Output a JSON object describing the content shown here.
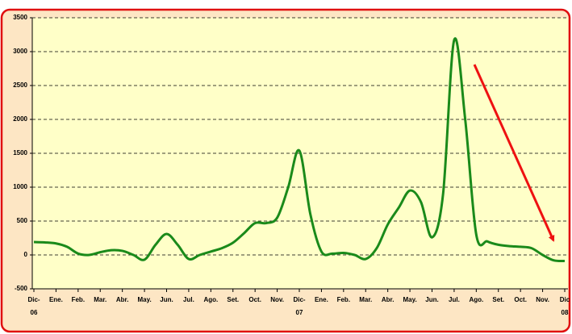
{
  "chart_data": {
    "type": "line",
    "x": [
      0,
      0.5,
      1,
      1.5,
      2,
      2.5,
      3,
      3.5,
      4,
      4.5,
      5,
      5.5,
      6,
      6.5,
      7,
      7.5,
      8,
      8.5,
      9,
      9.5,
      10,
      10.5,
      11,
      11.5,
      12,
      12.5,
      13,
      13.5,
      14,
      14.5,
      15,
      15.5,
      16,
      16.5,
      17,
      17.5,
      18,
      18.5,
      19,
      19.5,
      20,
      20.5,
      21,
      21.5,
      22,
      22.5,
      23,
      23.5,
      24
    ],
    "series": [
      {
        "color": "#1a8a1a",
        "values": [
          190,
          185,
          170,
          120,
          20,
          0,
          40,
          70,
          60,
          0,
          -70,
          150,
          310,
          150,
          -60,
          0,
          50,
          100,
          180,
          320,
          470,
          470,
          550,
          1000,
          1540,
          600,
          50,
          20,
          30,
          0,
          -60,
          100,
          450,
          700,
          950,
          780,
          260,
          900,
          3170,
          2000,
          300,
          200,
          150,
          130,
          120,
          100,
          0,
          -80,
          -90
        ]
      }
    ],
    "xlim": [
      0,
      24
    ],
    "xticks": [
      {
        "value": 0,
        "label": "Dic-"
      },
      {
        "value": 1,
        "label": "Ene."
      },
      {
        "value": 2,
        "label": "Feb."
      },
      {
        "value": 3,
        "label": "Mar."
      },
      {
        "value": 4,
        "label": "Abr."
      },
      {
        "value": 5,
        "label": "May."
      },
      {
        "value": 6,
        "label": "Jun."
      },
      {
        "value": 7,
        "label": "Jul."
      },
      {
        "value": 8,
        "label": "Ago."
      },
      {
        "value": 9,
        "label": "Set."
      },
      {
        "value": 10,
        "label": "Oct."
      },
      {
        "value": 11,
        "label": "Nov."
      },
      {
        "value": 12,
        "label": "Dic-"
      },
      {
        "value": 13,
        "label": "Ene."
      },
      {
        "value": 14,
        "label": "Feb."
      },
      {
        "value": 15,
        "label": "Mar."
      },
      {
        "value": 16,
        "label": "Abr."
      },
      {
        "value": 17,
        "label": "May."
      },
      {
        "value": 18,
        "label": "Jun."
      },
      {
        "value": 19,
        "label": "Jul."
      },
      {
        "value": 20,
        "label": "Ago."
      },
      {
        "value": 21,
        "label": "Set."
      },
      {
        "value": 22,
        "label": "Oct."
      },
      {
        "value": 23,
        "label": "Nov."
      },
      {
        "value": 24,
        "label": "Dic"
      }
    ],
    "year_labels": [
      {
        "value": 0,
        "label": "06"
      },
      {
        "value": 12,
        "label": "07"
      },
      {
        "value": 24,
        "label": "08"
      }
    ],
    "ylim": [
      -500,
      3500
    ],
    "yticks": [
      -500,
      0,
      500,
      1000,
      1500,
      2000,
      2500,
      3000,
      3500
    ],
    "grid": true
  }
}
